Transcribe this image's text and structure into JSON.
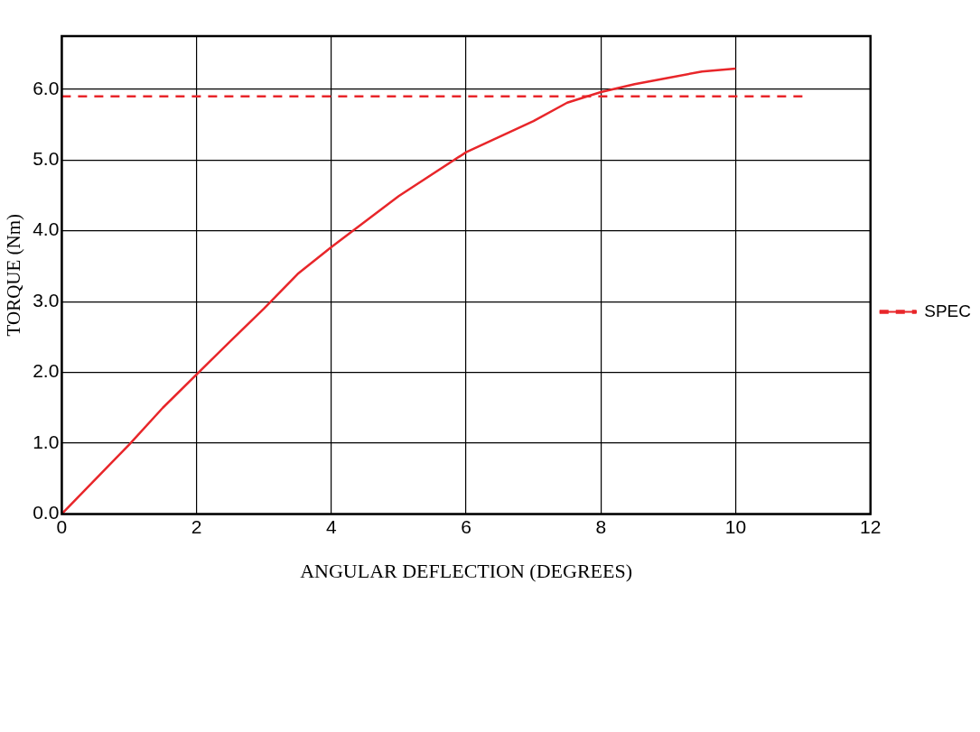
{
  "chart_data": {
    "type": "line",
    "xlabel": "ANGULAR DEFLECTION (DEGREES)",
    "ylabel": "TORQUE (Nm)",
    "xlim": [
      0,
      12
    ],
    "xticks": [
      0,
      2,
      4,
      6,
      8,
      10,
      12
    ],
    "ylim": [
      0,
      6.75
    ],
    "yticks": [
      {
        "value": 0,
        "label": "0.0"
      },
      {
        "value": 1,
        "label": "1.0"
      },
      {
        "value": 2,
        "label": "2.0"
      },
      {
        "value": 3,
        "label": "3.0"
      },
      {
        "value": 4,
        "label": "4.0"
      },
      {
        "value": 5,
        "label": "5.0"
      },
      {
        "value": 6,
        "label": "6.0"
      }
    ],
    "series": [
      {
        "color": "#e8262a",
        "line_style": "solid",
        "x": [
          0,
          1,
          1.5,
          2,
          2.5,
          3,
          3.5,
          4,
          5,
          6,
          7,
          7.5,
          8,
          8.5,
          9,
          9.5,
          10
        ],
        "values": [
          0,
          0.98,
          1.5,
          1.97,
          2.44,
          2.9,
          3.39,
          3.77,
          4.49,
          5.11,
          5.55,
          5.81,
          5.96,
          6.07,
          6.16,
          6.25,
          6.29
        ]
      },
      {
        "name": "SPEC",
        "color": "#e8262a",
        "line_style": "dashed",
        "x": [
          0,
          11
        ],
        "values": [
          5.9,
          5.9
        ]
      }
    ],
    "grid": true,
    "legend": "right",
    "marker": "none"
  }
}
